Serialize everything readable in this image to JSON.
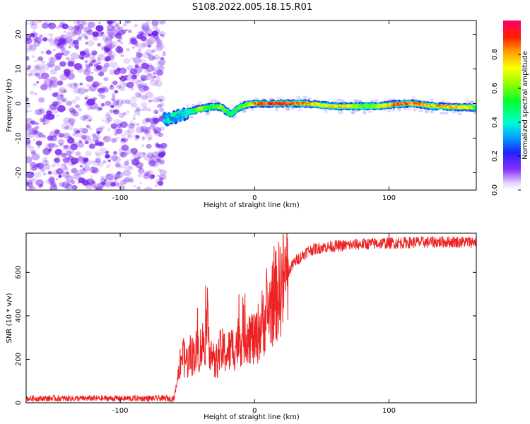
{
  "title": "S108.2022.005.18.15.R01",
  "colors": {
    "snr_line": "#ee2222",
    "noise_purple": "#7722ee",
    "background": "#ffffff"
  },
  "chart_data": [
    {
      "type": "heatmap",
      "xlabel": "Height of straight line (km)",
      "ylabel": "Frequency (Hz)",
      "xlim": [
        -170,
        165
      ],
      "ylim": [
        -25,
        24
      ],
      "xticks": [
        "-100",
        "0",
        "100"
      ],
      "xtick_values": [
        -100,
        0,
        100
      ],
      "yticks": [
        "-20",
        "-10",
        "0",
        "10",
        "20"
      ],
      "ytick_values": [
        -20,
        -10,
        0,
        10,
        20
      ],
      "grid": false,
      "noise_region_x": [
        -170,
        -67
      ],
      "signal_track": {
        "x": [
          -67,
          -60,
          -55,
          -50,
          -45,
          -40,
          -35,
          -30,
          -25,
          -20,
          -17,
          -13,
          -10,
          -5,
          0,
          10,
          20,
          30,
          40,
          50,
          60,
          70,
          80,
          90,
          100,
          110,
          120,
          130,
          140,
          150,
          160,
          165
        ],
        "freq": [
          -4.5,
          -4.0,
          -3.5,
          -2.5,
          -2.0,
          -1.5,
          -1.2,
          -0.8,
          -1.0,
          -2.5,
          -3.0,
          -1.5,
          -0.8,
          -0.3,
          0.0,
          0.0,
          0.0,
          0.0,
          0.0,
          -0.4,
          -0.8,
          -0.8,
          -0.8,
          -0.8,
          -0.4,
          0.0,
          0.0,
          -0.6,
          -0.9,
          -1.0,
          -1.1,
          -1.2
        ],
        "amplitude": [
          0.35,
          0.3,
          0.35,
          0.4,
          0.5,
          0.75,
          0.55,
          0.6,
          0.65,
          0.6,
          0.5,
          0.55,
          0.6,
          0.65,
          0.85,
          0.95,
          0.95,
          0.9,
          0.85,
          0.75,
          0.8,
          0.75,
          0.6,
          0.65,
          0.8,
          0.9,
          0.85,
          0.8,
          0.85,
          0.8,
          0.75,
          0.6
        ]
      },
      "colorbar": {
        "label": "Normalized spectral amplitude",
        "range": [
          0.0,
          1.0
        ],
        "ticks": [
          "0.0",
          "0.2",
          "0.4",
          "0.6",
          "0.8"
        ],
        "tick_values": [
          0.0,
          0.2,
          0.4,
          0.6,
          0.8
        ]
      }
    },
    {
      "type": "line",
      "xlabel": "Height of straight line (km)",
      "ylabel": "SNR (10 * v/v)",
      "xlim": [
        -170,
        165
      ],
      "ylim": [
        0,
        780
      ],
      "xticks": [
        "-100",
        "0",
        "100"
      ],
      "xtick_values": [
        -100,
        0,
        100
      ],
      "yticks": [
        "0",
        "200",
        "400",
        "600"
      ],
      "ytick_values": [
        0,
        200,
        400,
        600
      ],
      "grid": false,
      "series": [
        {
          "x": [
            -170,
            -140,
            -110,
            -80,
            -60,
            -57,
            -55,
            -50,
            -45,
            -40,
            -35,
            -30,
            -25,
            -20,
            -15,
            -10,
            -5,
            0,
            5,
            10,
            15,
            20,
            25,
            30,
            40,
            50,
            60,
            80,
            100,
            120,
            140,
            165
          ],
          "y": [
            20,
            20,
            20,
            20,
            20,
            120,
            220,
            190,
            230,
            250,
            330,
            170,
            240,
            230,
            260,
            300,
            330,
            280,
            360,
            420,
            480,
            540,
            600,
            650,
            700,
            715,
            720,
            730,
            735,
            738,
            740,
            740
          ]
        }
      ]
    }
  ]
}
